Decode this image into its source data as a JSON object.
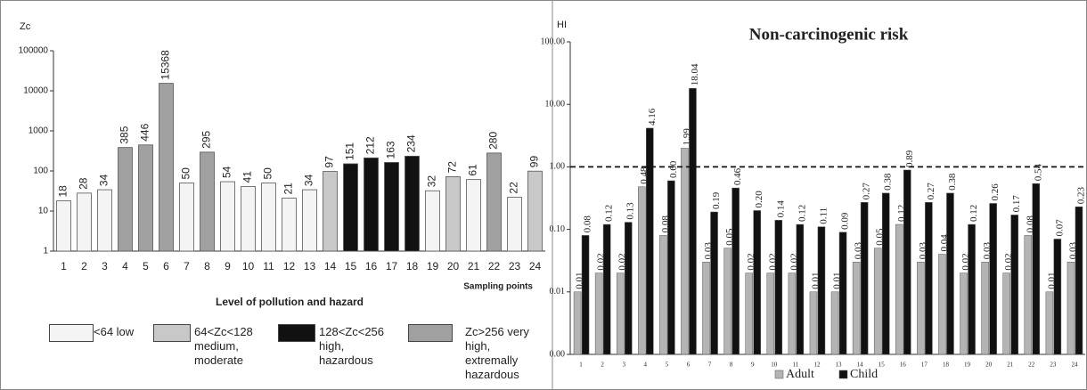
{
  "chart_data": [
    {
      "type": "bar",
      "y_label": "Zc",
      "x_label": "Sampling points",
      "legend_title": "Level of pollution and hazard",
      "categories": [
        "1",
        "2",
        "3",
        "4",
        "5",
        "6",
        "7",
        "8",
        "9",
        "10",
        "11",
        "12",
        "13",
        "14",
        "15",
        "16",
        "17",
        "18",
        "19",
        "20",
        "21",
        "22",
        "23",
        "24"
      ],
      "values": [
        18,
        28,
        34,
        385,
        446,
        15368,
        50,
        295,
        54,
        41,
        50,
        21,
        34,
        97,
        151,
        212,
        163,
        234,
        32,
        72,
        61,
        280,
        22,
        99
      ],
      "colors": [
        "#f4f4f4",
        "#f4f4f4",
        "#f4f4f4",
        "#a0a0a0",
        "#a0a0a0",
        "#a0a0a0",
        "#f4f4f4",
        "#a0a0a0",
        "#f4f4f4",
        "#f4f4f4",
        "#f4f4f4",
        "#f4f4f4",
        "#f4f4f4",
        "#c8c8c8",
        "#111111",
        "#111111",
        "#111111",
        "#111111",
        "#f4f4f4",
        "#c8c8c8",
        "#f4f4f4",
        "#a0a0a0",
        "#f4f4f4",
        "#c8c8c8"
      ],
      "legend": [
        {
          "name": "<64 low",
          "color": "#f4f4f4"
        },
        {
          "name": "64<Zc<128 medium, moderate",
          "color": "#c8c8c8"
        },
        {
          "name": "128<Zc<256 high, hazardous",
          "color": "#111111"
        },
        {
          "name": "Zc>256 very high, extremally hazardous",
          "color": "#a0a0a0"
        }
      ],
      "log_scale": true,
      "ylim": [
        1,
        100000
      ],
      "yticks": [
        1,
        10,
        100,
        1000,
        10000,
        100000
      ]
    },
    {
      "type": "grouped_bar",
      "title": "Non-carcinogenic risk",
      "y_label": "HI",
      "categories": [
        "1",
        "2",
        "3",
        "4",
        "5",
        "6",
        "7",
        "8",
        "9",
        "10",
        "11",
        "12",
        "13",
        "14",
        "15",
        "16",
        "17",
        "18",
        "19",
        "20",
        "21",
        "22",
        "23",
        "24"
      ],
      "series": [
        {
          "name": "Adult",
          "color": "#b4b4b4",
          "values": [
            0.01,
            0.02,
            0.02,
            0.48,
            0.08,
            1.99,
            0.03,
            0.05,
            0.02,
            0.02,
            0.02,
            0.01,
            0.01,
            0.03,
            0.05,
            0.12,
            0.03,
            0.04,
            0.02,
            0.03,
            0.02,
            0.08,
            0.01,
            0.03
          ],
          "value_labels": [
            "0.01",
            "0.02",
            "0.02",
            "0.48",
            "0.08",
            "1.99",
            "0.03",
            "0.05",
            "0.02",
            "0.02",
            "0.02",
            "0.01",
            "0.01",
            "0.03",
            "0.05",
            "0.12",
            "0.03",
            "0.04",
            "0.02",
            "0.03",
            "0.02",
            "0.08",
            "0.01",
            "0.03"
          ]
        },
        {
          "name": "Child",
          "color": "#111111",
          "values": [
            0.08,
            0.12,
            0.13,
            4.16,
            0.6,
            18.04,
            0.19,
            0.46,
            0.2,
            0.14,
            0.12,
            0.11,
            0.09,
            0.27,
            0.38,
            0.89,
            0.27,
            0.38,
            0.12,
            0.26,
            0.17,
            0.54,
            0.07,
            0.23
          ],
          "value_labels": [
            "0.08",
            "0.12",
            "0.13",
            "4.16",
            "0.60",
            "18.04",
            "0.19",
            "0.46",
            "0.20",
            "0.14",
            "0.12",
            "0.11",
            "0.09",
            "0.27",
            "0.38",
            "0.89",
            "0.27",
            "0.38",
            "0.12",
            "0.26",
            "0.17",
            "0.54",
            "0.07",
            "0.23"
          ]
        }
      ],
      "reference_line": 1,
      "log_scale": true,
      "ylim": [
        0.001,
        100
      ],
      "yticks": [
        {
          "value": 0.001,
          "label": "0.00"
        },
        {
          "value": 0.01,
          "label": "0.01"
        },
        {
          "value": 0.1,
          "label": "0.10"
        },
        {
          "value": 1,
          "label": "1.00"
        },
        {
          "value": 10,
          "label": "10.00"
        },
        {
          "value": 100,
          "label": "100.00"
        }
      ]
    }
  ]
}
